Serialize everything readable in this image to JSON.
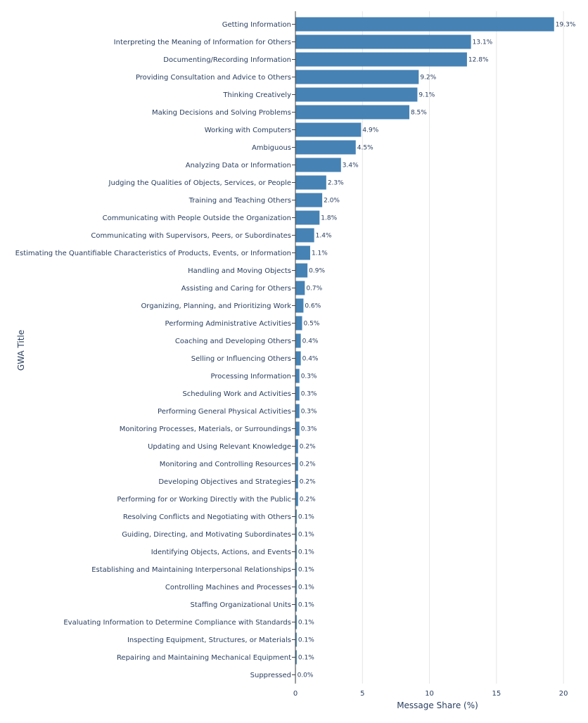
{
  "chart_data": {
    "type": "bar",
    "orientation": "horizontal",
    "xlabel": "Message Share (%)",
    "ylabel": "GWA Title",
    "xlim": [
      0,
      21.2
    ],
    "x_ticks": [
      0,
      5,
      10,
      15,
      20
    ],
    "grid": true,
    "bar_color": "#4682b4",
    "categories": [
      "Getting Information",
      "Interpreting the Meaning of Information for Others",
      "Documenting/Recording Information",
      "Providing Consultation and Advice to Others",
      "Thinking Creatively",
      "Making Decisions and Solving Problems",
      "Working with Computers",
      "Ambiguous",
      "Analyzing Data or Information",
      "Judging the Qualities of Objects, Services, or People",
      "Training and Teaching Others",
      "Communicating with People Outside the Organization",
      "Communicating with Supervisors, Peers, or Subordinates",
      "Estimating the Quantifiable Characteristics of Products, Events, or Information",
      "Handling and Moving Objects",
      "Assisting and Caring for Others",
      "Organizing, Planning, and Prioritizing Work",
      "Performing Administrative Activities",
      "Coaching and Developing Others",
      "Selling or Influencing Others",
      "Processing Information",
      "Scheduling Work and Activities",
      "Performing General Physical Activities",
      "Monitoring Processes, Materials, or Surroundings",
      "Updating and Using Relevant Knowledge",
      "Monitoring and Controlling Resources",
      "Developing Objectives and Strategies",
      "Performing for or Working Directly with the Public",
      "Resolving Conflicts and Negotiating with Others",
      "Guiding, Directing, and Motivating Subordinates",
      "Identifying Objects, Actions, and Events",
      "Establishing and Maintaining Interpersonal Relationships",
      "Controlling Machines and Processes",
      "Staffing Organizational Units",
      "Evaluating Information to Determine Compliance with Standards",
      "Inspecting Equipment, Structures, or Materials",
      "Repairing and Maintaining Mechanical Equipment",
      "Suppressed"
    ],
    "values": [
      19.3,
      13.1,
      12.8,
      9.2,
      9.1,
      8.5,
      4.9,
      4.5,
      3.4,
      2.3,
      2.0,
      1.8,
      1.4,
      1.1,
      0.9,
      0.7,
      0.6,
      0.5,
      0.4,
      0.4,
      0.3,
      0.3,
      0.3,
      0.3,
      0.2,
      0.2,
      0.2,
      0.2,
      0.1,
      0.1,
      0.1,
      0.1,
      0.1,
      0.1,
      0.1,
      0.1,
      0.1,
      0.0
    ],
    "data_labels": [
      "19.3%",
      "13.1%",
      "12.8%",
      "9.2%",
      "9.1%",
      "8.5%",
      "4.9%",
      "4.5%",
      "3.4%",
      "2.3%",
      "2.0%",
      "1.8%",
      "1.4%",
      "1.1%",
      "0.9%",
      "0.7%",
      "0.6%",
      "0.5%",
      "0.4%",
      "0.4%",
      "0.3%",
      "0.3%",
      "0.3%",
      "0.3%",
      "0.2%",
      "0.2%",
      "0.2%",
      "0.2%",
      "0.1%",
      "0.1%",
      "0.1%",
      "0.1%",
      "0.1%",
      "0.1%",
      "0.1%",
      "0.1%",
      "0.1%",
      "0.0%"
    ]
  }
}
